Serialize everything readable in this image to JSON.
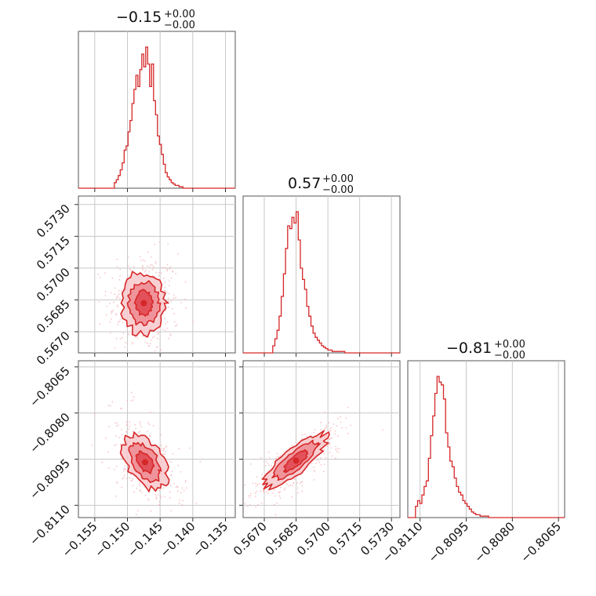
{
  "colors": {
    "accent": "#d62728",
    "fill_light": "#f7c9cc",
    "fill_mid": "#ee8a90",
    "fill_dark": "#e0474f",
    "points": "#f4b6bb"
  },
  "titles": [
    {
      "value": "−0.15",
      "sup": "+0.00",
      "sub": "−0.00"
    },
    {
      "value": "0.57",
      "sup": "+0.00",
      "sub": "−0.00"
    },
    {
      "value": "−0.81",
      "sup": "+0.00",
      "sub": "−0.00"
    }
  ],
  "chart_data": {
    "type": "corner",
    "params": [
      {
        "range": [
          -0.1575,
          -0.1335
        ],
        "ticks": [
          -0.155,
          -0.15,
          -0.145,
          -0.14,
          -0.135
        ],
        "tick_labels": [
          "−0.155",
          "−0.150",
          "−0.145",
          "−0.140",
          "−0.135"
        ],
        "hist_bins": [
          -0.152,
          -0.1517,
          -0.1514,
          -0.1511,
          -0.1508,
          -0.1505,
          -0.1502,
          -0.1499,
          -0.1496,
          -0.1493,
          -0.149,
          -0.1487,
          -0.1484,
          -0.1481,
          -0.1478,
          -0.1475,
          -0.1472,
          -0.1469,
          -0.1466,
          -0.1463,
          -0.146,
          -0.1457,
          -0.1454,
          -0.1451,
          -0.1448,
          -0.1445,
          -0.1442,
          -0.1439,
          -0.1436,
          -0.1433,
          -0.143,
          -0.1427,
          -0.1424,
          -0.1421,
          -0.1418
        ],
        "hist_counts": [
          4,
          6,
          9,
          13,
          18,
          27,
          30,
          40,
          48,
          60,
          70,
          80,
          72,
          84,
          95,
          86,
          100,
          88,
          72,
          88,
          62,
          52,
          37,
          31,
          24,
          17,
          11,
          8,
          6,
          4,
          3,
          2,
          2,
          1,
          1
        ]
      },
      {
        "range": [
          0.566,
          0.5734
        ],
        "ticks": [
          0.567,
          0.5685,
          0.57,
          0.5715,
          0.573
        ],
        "tick_labels": [
          "0.5670",
          "0.5685",
          "0.5700",
          "0.5715",
          "0.5730"
        ],
        "hist_bins": [
          0.5674,
          0.5675,
          0.5676,
          0.5677,
          0.5678,
          0.5679,
          0.568,
          0.5681,
          0.5682,
          0.5683,
          0.5684,
          0.5685,
          0.5686,
          0.5687,
          0.5688,
          0.5689,
          0.569,
          0.5691,
          0.5692,
          0.5693,
          0.5694,
          0.5695,
          0.5696,
          0.5697,
          0.5698,
          0.5699,
          0.57,
          0.5701,
          0.5702,
          0.5703,
          0.5704,
          0.5705,
          0.5706,
          0.5707,
          0.5708
        ],
        "hist_counts": [
          5,
          10,
          16,
          26,
          40,
          56,
          74,
          90,
          88,
          96,
          92,
          100,
          80,
          60,
          52,
          45,
          33,
          26,
          19,
          14,
          11,
          9,
          7,
          5,
          4,
          3,
          2,
          2,
          1,
          1,
          1,
          1,
          1,
          1,
          0
        ]
      },
      {
        "range": [
          -0.8114,
          -0.8063
        ],
        "ticks": [
          -0.811,
          -0.8095,
          -0.808,
          -0.8065
        ],
        "tick_labels": [
          "−0.8110",
          "−0.8095",
          "−0.8080",
          "−0.8065"
        ],
        "hist_bins": [
          -0.81115,
          -0.81108,
          -0.81101,
          -0.81094,
          -0.81087,
          -0.8108,
          -0.81073,
          -0.81066,
          -0.81059,
          -0.81052,
          -0.81045,
          -0.81038,
          -0.81031,
          -0.81024,
          -0.81017,
          -0.8101,
          -0.81003,
          -0.80996,
          -0.80989,
          -0.80982,
          -0.80975,
          -0.80968,
          -0.80961,
          -0.80954,
          -0.80947,
          -0.8094,
          -0.80933,
          -0.80926,
          -0.80919,
          -0.80912,
          -0.80905,
          -0.80898,
          -0.80891,
          -0.80884,
          -0.80877,
          -0.8087
        ],
        "hist_counts": [
          8,
          12,
          10,
          16,
          22,
          26,
          42,
          58,
          72,
          88,
          100,
          96,
          94,
          84,
          60,
          50,
          40,
          36,
          28,
          22,
          18,
          16,
          12,
          10,
          8,
          6,
          4,
          3,
          2,
          2,
          1,
          1,
          1,
          1,
          0,
          0
        ]
      }
    ],
    "pairs": [
      {
        "x_param": 0,
        "y_param": 1,
        "center": [
          -0.1475,
          0.56835
        ],
        "sigma": [
          0.0016,
          0.0007
        ],
        "rho": 0.0
      },
      {
        "x_param": 0,
        "y_param": 2,
        "center": [
          -0.1473,
          -0.8096
        ],
        "sigma": [
          0.0016,
          0.00042
        ],
        "rho": -0.45
      },
      {
        "x_param": 1,
        "y_param": 2,
        "center": [
          0.5685,
          -0.80955
        ],
        "sigma": [
          0.0007,
          0.00042
        ],
        "rho": 0.82
      }
    ],
    "grid": true
  }
}
